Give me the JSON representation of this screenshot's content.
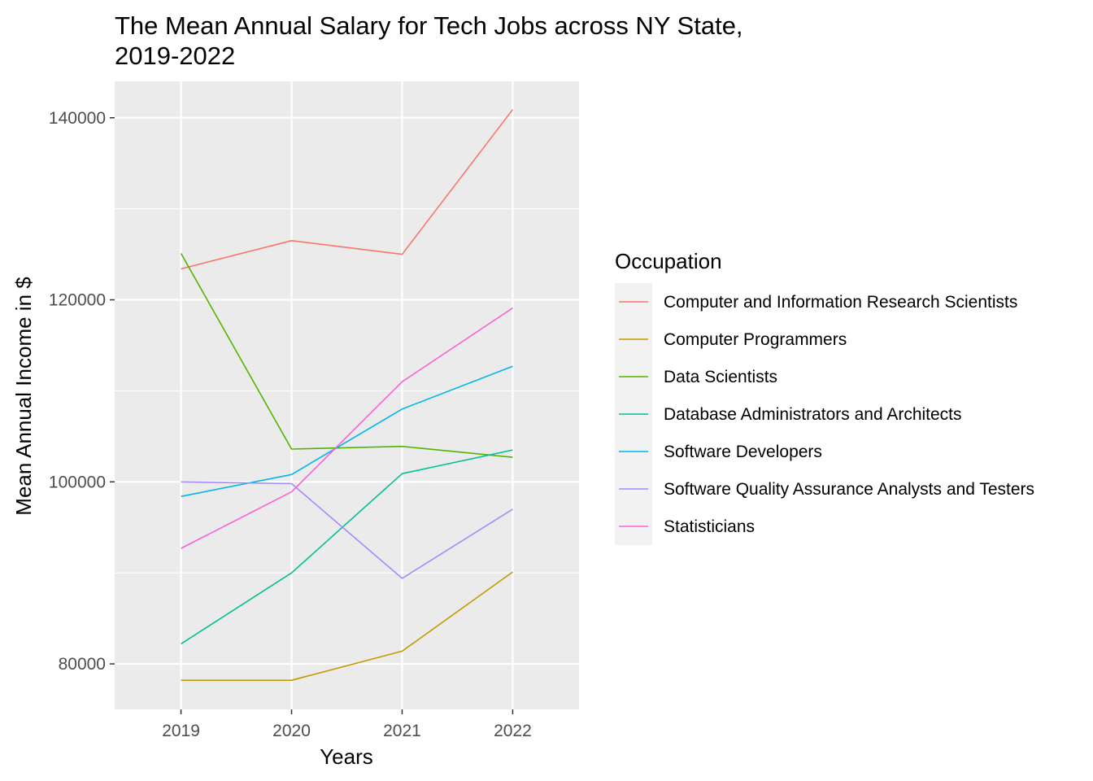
{
  "chart_data": {
    "type": "line",
    "title": "The Mean Annual Salary for Tech Jobs across NY State,",
    "title_line2": "2019-2022",
    "xlabel": "Years",
    "ylabel": "Mean Annual Income in $",
    "categories": [
      "2019",
      "2020",
      "2021",
      "2022"
    ],
    "x_tick_labels": [
      "2019",
      "2020",
      "2021",
      "2022"
    ],
    "y_ticks": [
      80000,
      100000,
      120000,
      140000
    ],
    "y_tick_labels": [
      "80000",
      "100000",
      "120000",
      "140000"
    ],
    "ylim": [
      75000,
      144000
    ],
    "grid": true,
    "panel_background": "#ebebeb",
    "grid_color": "#ffffff",
    "legend": {
      "title": "Occupation",
      "position": "right"
    },
    "series": [
      {
        "name": "Computer and Information Research Scientists",
        "color": "#F8766D",
        "values": [
          123400,
          126500,
          125000,
          140900
        ]
      },
      {
        "name": "Computer Programmers",
        "color": "#C49A00",
        "values": [
          78200,
          78200,
          81400,
          90100
        ]
      },
      {
        "name": "Data Scientists",
        "color": "#53B400",
        "values": [
          125100,
          103600,
          103900,
          102700
        ]
      },
      {
        "name": "Database Administrators and Architects",
        "color": "#00C094",
        "values": [
          82200,
          90000,
          100900,
          103500
        ]
      },
      {
        "name": "Software Developers",
        "color": "#00B6EB",
        "values": [
          98400,
          100800,
          108000,
          112700
        ]
      },
      {
        "name": "Software Quality Assurance Analysts and Testers",
        "color": "#A58AFF",
        "values": [
          100000,
          99800,
          89400,
          97000
        ]
      },
      {
        "name": "Statisticians",
        "color": "#FB61D7",
        "values": [
          92700,
          98900,
          111000,
          119100
        ]
      }
    ]
  }
}
